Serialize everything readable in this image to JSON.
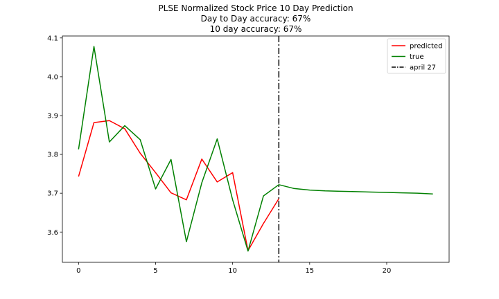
{
  "chart_data": {
    "type": "line",
    "title_lines": [
      "PLSE Normalized Stock Price 10 Day Prediction",
      "Day to Day accuracy: 67%",
      "10 day accuracy: 67%"
    ],
    "xlabel": "",
    "ylabel": "",
    "xlim": [
      -1.05,
      24.05
    ],
    "ylim": [
      3.522,
      4.105
    ],
    "x_ticks": [
      0,
      5,
      10,
      15,
      20
    ],
    "x_tick_labels": [
      "0",
      "5",
      "10",
      "15",
      "20"
    ],
    "y_ticks": [
      3.6,
      3.7,
      3.8,
      3.9,
      4.0,
      4.1
    ],
    "y_tick_labels": [
      "3.6",
      "3.7",
      "3.8",
      "3.9",
      "4.0",
      "4.1"
    ],
    "grid": false,
    "legend_position": "top-right",
    "series": [
      {
        "name": "predicted",
        "color": "#ff0000",
        "x": [
          0,
          1,
          2,
          3,
          4,
          5,
          6,
          7,
          8,
          9,
          10,
          11,
          12,
          13
        ],
        "values": [
          3.743,
          3.882,
          3.887,
          3.866,
          3.803,
          3.753,
          3.701,
          3.683,
          3.788,
          3.729,
          3.753,
          3.552,
          3.622,
          3.686
        ]
      },
      {
        "name": "true",
        "color": "#008000",
        "x": [
          0,
          1,
          2,
          3,
          4,
          5,
          6,
          7,
          8,
          9,
          10,
          11,
          12,
          13,
          14,
          15,
          16,
          17,
          18,
          19,
          20,
          21,
          22,
          23
        ],
        "values": [
          3.813,
          4.078,
          3.832,
          3.874,
          3.838,
          3.711,
          3.787,
          3.575,
          3.727,
          3.84,
          3.683,
          3.551,
          3.693,
          3.722,
          3.712,
          3.708,
          3.706,
          3.705,
          3.704,
          3.703,
          3.702,
          3.701,
          3.7,
          3.698
        ]
      }
    ],
    "vline": {
      "name": "april 27",
      "x": 13,
      "color": "#000000",
      "style": "dash-dot"
    }
  }
}
